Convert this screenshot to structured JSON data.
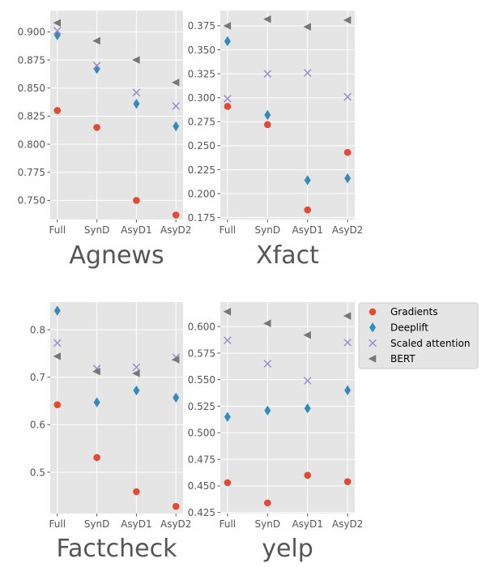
{
  "series_styles": [
    {
      "name": "Gradients",
      "marker": "circle",
      "color": "#E24A33"
    },
    {
      "name": "Deeplift",
      "marker": "thin-diamond",
      "color": "#348ABD"
    },
    {
      "name": "Scaled attention",
      "marker": "x",
      "color": "#988ED5"
    },
    {
      "name": "BERT",
      "marker": "triangle-left",
      "color": "#777777"
    }
  ],
  "colors": {
    "panel_bg": "#E5E5E5",
    "grid": "#FFFFFF",
    "tick_text": "#555555"
  },
  "chart_data": [
    {
      "type": "scatter",
      "title": "Agnews",
      "categories": [
        "Full",
        "SynD",
        "AsyD1",
        "AsyD2"
      ],
      "ylim": [
        0.733,
        0.919
      ],
      "yticks": [
        "0.750",
        "0.775",
        "0.800",
        "0.825",
        "0.850",
        "0.875",
        "0.900"
      ],
      "grid": true,
      "series": [
        {
          "name": "Gradients",
          "values": [
            0.83,
            0.815,
            0.75,
            0.737
          ]
        },
        {
          "name": "Deeplift",
          "values": [
            0.897,
            0.867,
            0.836,
            0.816
          ]
        },
        {
          "name": "Scaled attention",
          "values": [
            0.901,
            0.87,
            0.846,
            0.834
          ]
        },
        {
          "name": "BERT",
          "values": [
            0.908,
            0.892,
            0.875,
            0.855
          ]
        }
      ]
    },
    {
      "type": "scatter",
      "title": "Xfact",
      "categories": [
        "Full",
        "SynD",
        "AsyD1",
        "AsyD2"
      ],
      "ylim": [
        0.173,
        0.391
      ],
      "yticks": [
        "0.175",
        "0.200",
        "0.225",
        "0.250",
        "0.275",
        "0.300",
        "0.325",
        "0.350",
        "0.375"
      ],
      "grid": true,
      "series": [
        {
          "name": "Gradients",
          "values": [
            0.291,
            0.272,
            0.183,
            0.243
          ]
        },
        {
          "name": "Deeplift",
          "values": [
            0.359,
            0.282,
            0.214,
            0.216
          ]
        },
        {
          "name": "Scaled attention",
          "values": [
            0.299,
            0.325,
            0.326,
            0.301
          ]
        },
        {
          "name": "BERT",
          "values": [
            0.375,
            0.382,
            0.374,
            0.381
          ]
        }
      ]
    },
    {
      "type": "scatter",
      "title": "Factcheck",
      "categories": [
        "Full",
        "SynD",
        "AsyD1",
        "AsyD2"
      ],
      "ylim": [
        0.413,
        0.858
      ],
      "yticks": [
        "0.5",
        "0.6",
        "0.7",
        "0.8"
      ],
      "grid": true,
      "series": [
        {
          "name": "Gradients",
          "values": [
            0.642,
            0.531,
            0.459,
            0.428
          ]
        },
        {
          "name": "Deeplift",
          "values": [
            0.84,
            0.647,
            0.672,
            0.657
          ]
        },
        {
          "name": "Scaled attention",
          "values": [
            0.772,
            0.718,
            0.721,
            0.742
          ]
        },
        {
          "name": "BERT",
          "values": [
            0.744,
            0.712,
            0.708,
            0.737
          ]
        }
      ]
    },
    {
      "type": "scatter",
      "title": "yelp",
      "categories": [
        "Full",
        "SynD",
        "AsyD1",
        "AsyD2"
      ],
      "ylim": [
        0.424,
        0.623
      ],
      "yticks": [
        "0.425",
        "0.450",
        "0.475",
        "0.500",
        "0.525",
        "0.550",
        "0.575",
        "0.600"
      ],
      "grid": true,
      "series": [
        {
          "name": "Gradients",
          "values": [
            0.453,
            0.434,
            0.46,
            0.454
          ]
        },
        {
          "name": "Deeplift",
          "values": [
            0.515,
            0.521,
            0.523,
            0.54
          ]
        },
        {
          "name": "Scaled attention",
          "values": [
            0.587,
            0.565,
            0.549,
            0.585
          ]
        },
        {
          "name": "BERT",
          "values": [
            0.614,
            0.603,
            0.592,
            0.61
          ]
        }
      ]
    }
  ]
}
